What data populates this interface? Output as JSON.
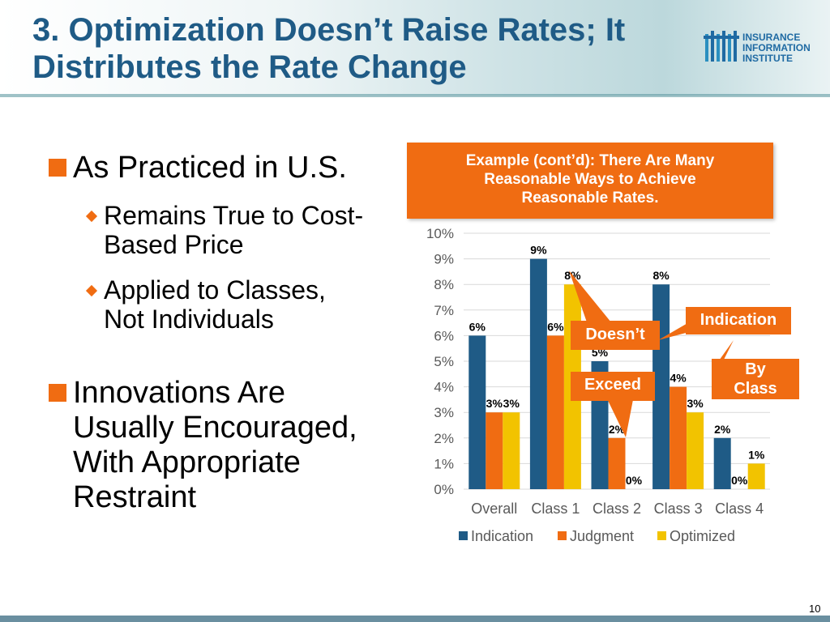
{
  "title": {
    "line1": "3. Optimization Doesn’t Raise Rates; It",
    "line2": "Distributes the Rate Change"
  },
  "logo": {
    "line1": "INSURANCE",
    "line2": "INFORMATION",
    "line3": "INSTITUTE"
  },
  "bullets": {
    "b1": "As Practiced in U.S.",
    "b1_sub1_line1": "Remains True to Cost-",
    "b1_sub1_line2": "Based Price",
    "b1_sub2_line1": "Applied to Classes,",
    "b1_sub2_line2": "Not Individuals",
    "b2_line1": "Innovations Are",
    "b2_line2": "Usually Encouraged,",
    "b2_line3": "With Appropriate",
    "b2_line4": "Restraint"
  },
  "callout": {
    "line1": "Example (cont’d): There Are Many",
    "line2": "Reasonable Ways to Achieve",
    "line3": "Reasonable Rates."
  },
  "annotations": {
    "indication": "Indication",
    "doesnt": "Doesn’t",
    "exceed": "Exceed",
    "by": "By",
    "class": "Class"
  },
  "page_number": "10",
  "colors": {
    "indication": "#1f5b86",
    "judgment": "#f06c12",
    "optimized": "#f2c300",
    "accent": "#f06c12"
  },
  "chart_data": {
    "type": "bar",
    "categories": [
      "Overall",
      "Class 1",
      "Class 2",
      "Class 3",
      "Class 4"
    ],
    "series": [
      {
        "name": "Indication",
        "values": [
          6,
          9,
          5,
          8,
          2
        ]
      },
      {
        "name": "Judgment",
        "values": [
          3,
          6,
          2,
          4,
          0
        ]
      },
      {
        "name": "Optimized",
        "values": [
          3,
          8,
          0,
          3,
          1
        ]
      }
    ],
    "data_labels": [
      [
        "6%",
        "9%",
        "5%",
        "8%",
        "2%"
      ],
      [
        "3%",
        "6%",
        "2%",
        "4%",
        "0%"
      ],
      [
        "3%",
        "8%",
        "0%",
        "3%",
        "1%"
      ]
    ],
    "ylim": [
      0,
      10
    ],
    "yticks": [
      "0%",
      "1%",
      "2%",
      "3%",
      "4%",
      "5%",
      "6%",
      "7%",
      "8%",
      "9%",
      "10%"
    ],
    "legend_position": "bottom",
    "grid": true
  }
}
